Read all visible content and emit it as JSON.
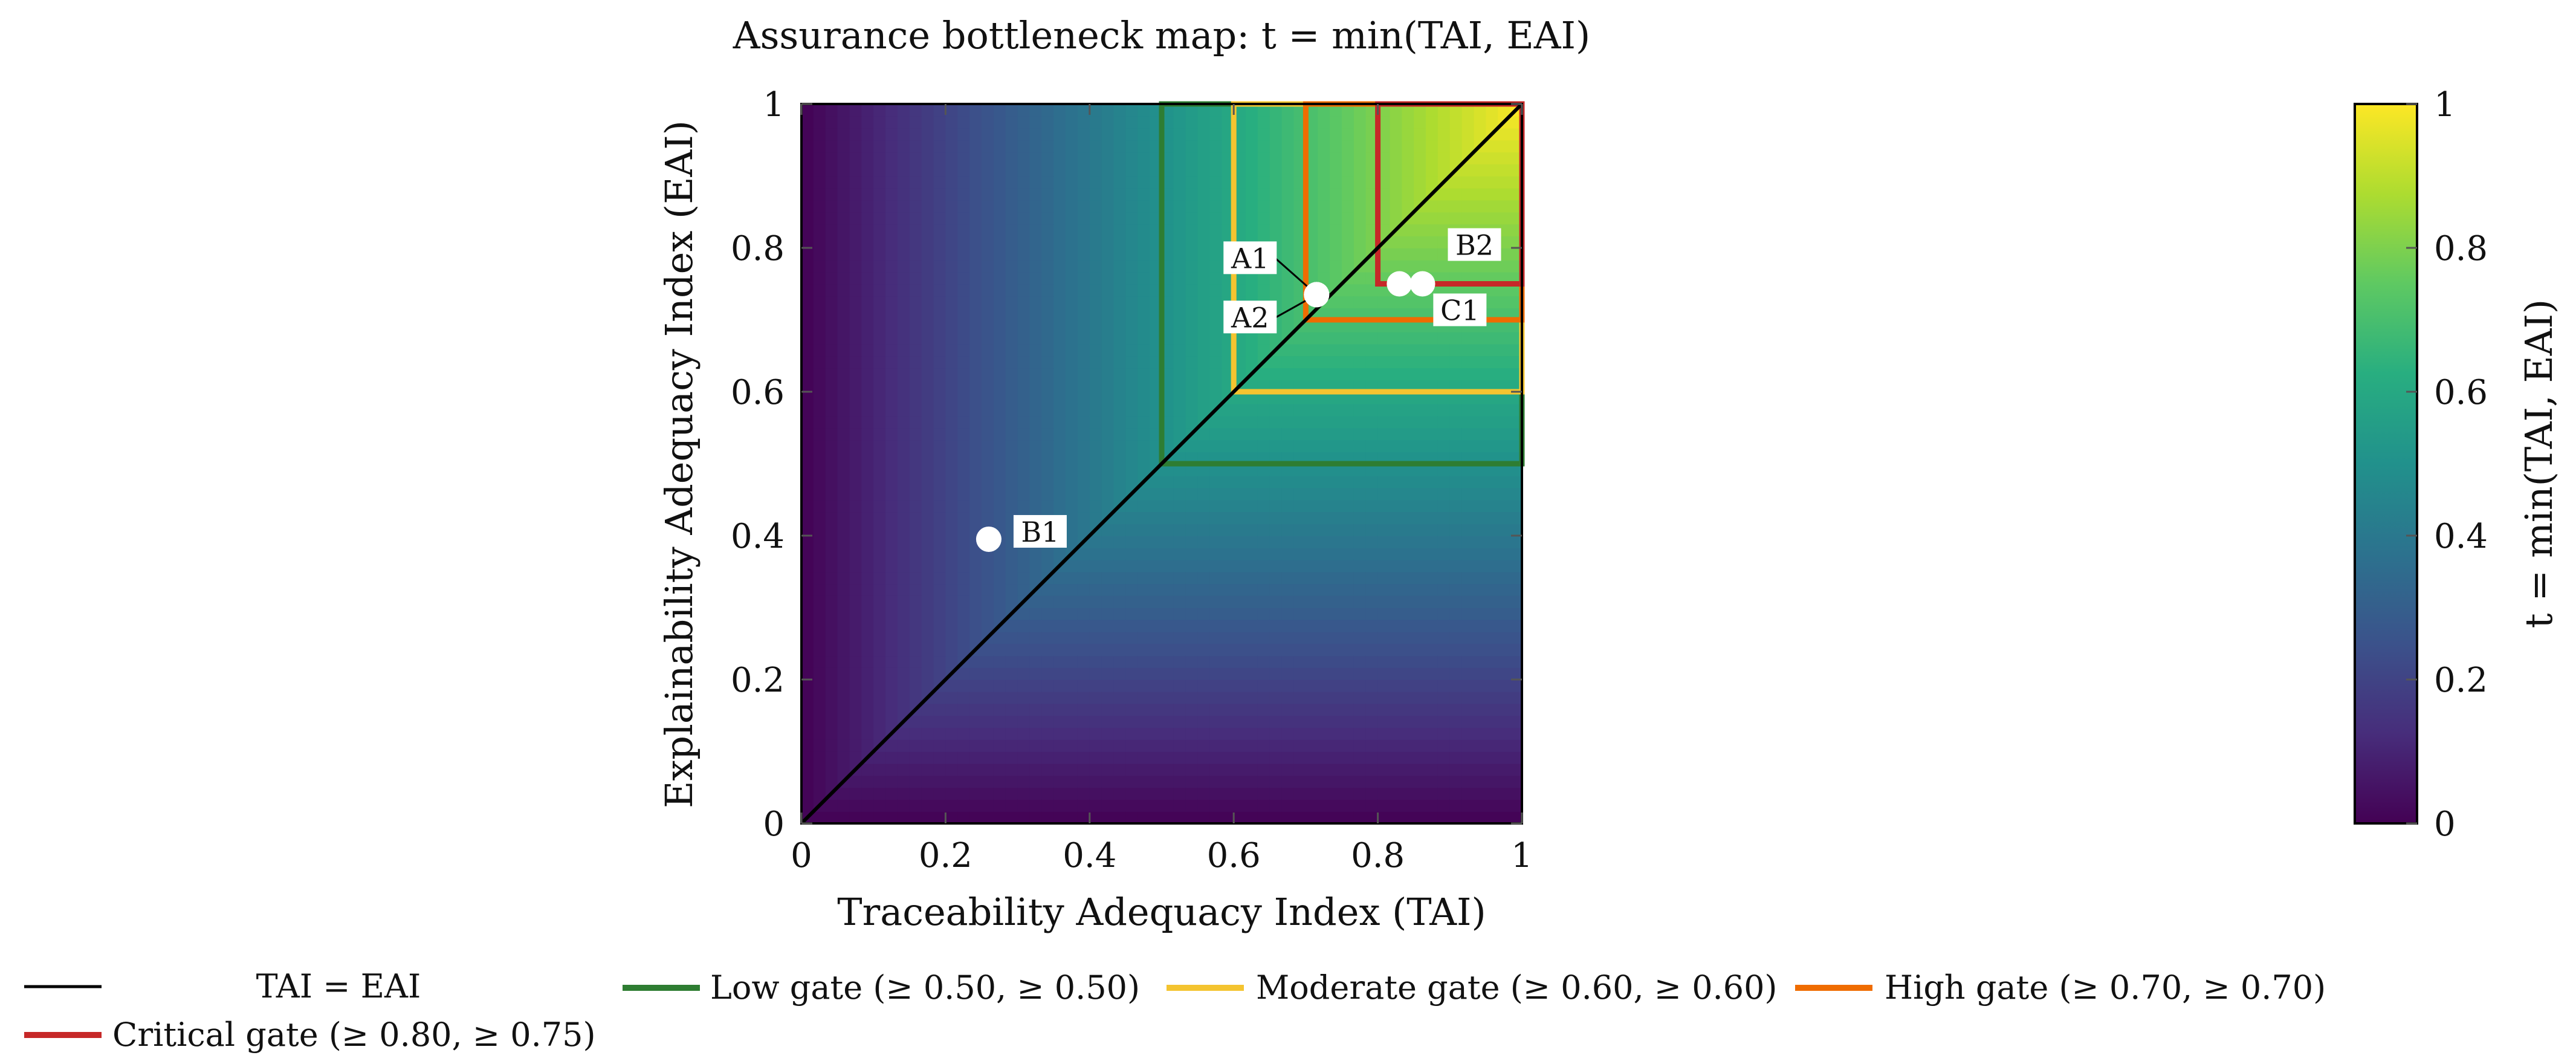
{
  "chart_data": {
    "type": "heatmap",
    "title": "Assurance bottleneck map: t = min(TAI, EAI)",
    "xlabel": "Traceability Adequacy Index (TAI)",
    "ylabel": "Explainability Adequacy Index (EAI)",
    "xlim": [
      0,
      1
    ],
    "ylim": [
      0,
      1
    ],
    "xticks": [
      "0",
      "0.2",
      "0.4",
      "0.6",
      "0.8",
      "1"
    ],
    "yticks": [
      "0",
      "0.2",
      "0.4",
      "0.6",
      "0.8",
      "1"
    ],
    "field": "t = min(TAI, EAI)",
    "colormap": "viridis",
    "colorbar": {
      "label": "t = min(TAI, EAI)",
      "range": [
        0,
        1
      ],
      "ticks": [
        "0",
        "0.2",
        "0.4",
        "0.6",
        "0.8",
        "1"
      ]
    },
    "diagonal": {
      "label": "TAI = EAI",
      "color": "#000000"
    },
    "gates": [
      {
        "name": "Low gate",
        "legend": "Low gate (≥ 0.50, ≥ 0.50)",
        "tai_min": 0.5,
        "eai_min": 0.5,
        "color": "#2e7d32"
      },
      {
        "name": "Moderate gate",
        "legend": "Moderate gate (≥ 0.60, ≥ 0.60)",
        "tai_min": 0.6,
        "eai_min": 0.6,
        "color": "#f4c430"
      },
      {
        "name": "High gate",
        "legend": "High gate (≥ 0.70, ≥ 0.70)",
        "tai_min": 0.7,
        "eai_min": 0.7,
        "color": "#ef6c00"
      },
      {
        "name": "Critical gate",
        "legend": "Critical gate (≥ 0.80, ≥ 0.75)",
        "tai_min": 0.8,
        "eai_min": 0.75,
        "color": "#c62828"
      }
    ],
    "points": [
      {
        "label": "A1",
        "tai": 0.715,
        "eai": 0.735
      },
      {
        "label": "A2",
        "tai": 0.715,
        "eai": 0.735
      },
      {
        "label": "C1",
        "tai": 0.83,
        "eai": 0.75
      },
      {
        "label": "B2",
        "tai": 0.862,
        "eai": 0.75
      },
      {
        "label": "B1",
        "tai": 0.26,
        "eai": 0.395
      }
    ],
    "legend_position": "bottom"
  }
}
